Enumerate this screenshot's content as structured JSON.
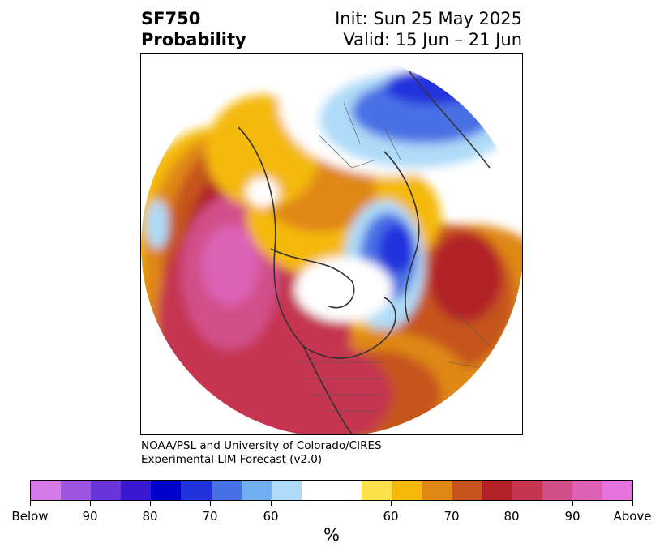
{
  "title": {
    "variable": "SF750",
    "quantity": "Probability",
    "init": "Init: Sun 25 May 2025",
    "valid": "Valid: 15 Jun – 21 Jun"
  },
  "credit": {
    "line1": "NOAA/PSL and University of Colorado/CIRES",
    "line2": "Experimental LIM Forecast (v2.0)"
  },
  "colorbar": {
    "unit": "%",
    "colors": [
      "#d57ae8",
      "#9b55e0",
      "#6a35d8",
      "#3a18d2",
      "#0000cc",
      "#2233dd",
      "#4a70e5",
      "#72aef2",
      "#aedbf8",
      "#ffffff",
      "#fde04a",
      "#f4b90a",
      "#df8812",
      "#c6541a",
      "#b12125",
      "#c5354f",
      "#d14f89",
      "#dd62b5",
      "#e673dd"
    ],
    "labels": [
      "Below",
      "90",
      "80",
      "70",
      "60",
      "60",
      "70",
      "80",
      "90",
      "Above"
    ]
  }
}
